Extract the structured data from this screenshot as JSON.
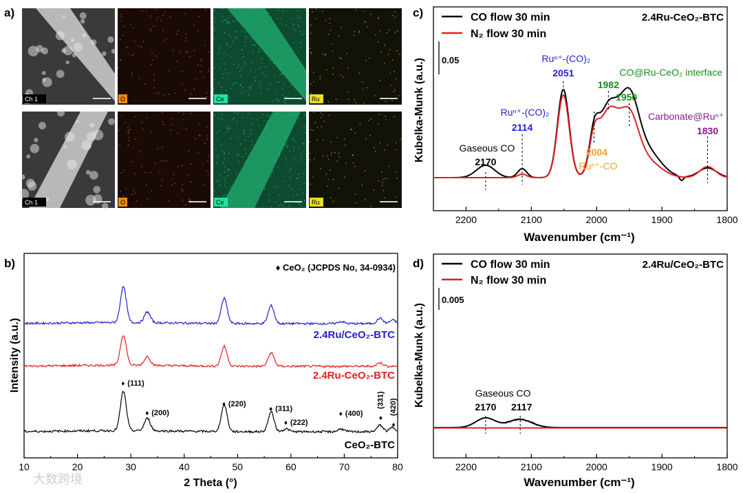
{
  "colors": {
    "black": "#000000",
    "red": "#e02020",
    "blue": "#1f1fd0",
    "green": "#1a8c1a",
    "orange": "#f0a020",
    "purple": "#8a1a8a",
    "cyan": "#20e0a0",
    "yellow": "#e8e020"
  },
  "panel_a": {
    "label": "a)",
    "rows": [
      {
        "tiles": [
          {
            "tag": "Ch 1",
            "kind": "sem"
          },
          {
            "tag": "O",
            "kind": "o"
          },
          {
            "tag": "Ce",
            "kind": "ce"
          },
          {
            "tag": "Ru",
            "kind": "ru"
          }
        ]
      },
      {
        "tiles": [
          {
            "tag": "Ch 1",
            "kind": "sem"
          },
          {
            "tag": "O",
            "kind": "o"
          },
          {
            "tag": "Ce",
            "kind": "ce"
          },
          {
            "tag": "Ru",
            "kind": "ru"
          }
        ]
      }
    ]
  },
  "watermark": "大数跨境",
  "chart_data": [
    {
      "id": "b",
      "panel_label": "b)",
      "type": "line",
      "xlabel": "2 Theta (°)",
      "ylabel": "Intensity (a.u.)",
      "xlim": [
        10,
        80
      ],
      "xticks": [
        10,
        20,
        30,
        40,
        50,
        60,
        70,
        80
      ],
      "legend": "♦ CeO₂ (JCPDS No, 34-0934)",
      "series": [
        {
          "name": "2.4Ru/CeO₂-BTC",
          "color": "#1f1fd0",
          "offset": 2.6,
          "peaks": [
            [
              28.6,
              1.0
            ],
            [
              33.1,
              0.3
            ],
            [
              47.5,
              0.7
            ],
            [
              56.3,
              0.5
            ],
            [
              69.4,
              0.06
            ],
            [
              76.7,
              0.15
            ],
            [
              79.1,
              0.1
            ]
          ]
        },
        {
          "name": "2.4Ru-CeO₂-BTC",
          "color": "#e02020",
          "offset": 1.3,
          "peaks": [
            [
              28.6,
              0.85
            ],
            [
              33.1,
              0.25
            ],
            [
              47.5,
              0.55
            ],
            [
              56.3,
              0.38
            ],
            [
              76.7,
              0.1
            ]
          ]
        },
        {
          "name": "CeO₂-BTC",
          "color": "#000000",
          "offset": 0,
          "peaks": [
            [
              28.6,
              1.1
            ],
            [
              33.1,
              0.35
            ],
            [
              47.5,
              0.75
            ],
            [
              56.3,
              0.55
            ],
            [
              59.1,
              0.08
            ],
            [
              69.4,
              0.08
            ],
            [
              76.7,
              0.18
            ],
            [
              79.1,
              0.12
            ]
          ]
        }
      ],
      "annotations": [
        {
          "text": "(111)",
          "x": 28.6
        },
        {
          "text": "(200)",
          "x": 33.1
        },
        {
          "text": "(220)",
          "x": 47.5
        },
        {
          "text": "(311)",
          "x": 56.3
        },
        {
          "text": "(222)",
          "x": 59.1
        },
        {
          "text": "(400)",
          "x": 69.4
        },
        {
          "text": "(331)",
          "x": 76.7
        },
        {
          "text": "(420)",
          "x": 79.1
        }
      ]
    },
    {
      "id": "c",
      "panel_label": "c)",
      "type": "line",
      "title": "2.4Ru-CeO₂-BTC",
      "xlabel": "Wavenumber (cm⁻¹)",
      "ylabel": "Kubelka-Munk (a.u.)",
      "xlim": [
        2250,
        1800
      ],
      "xticks": [
        2200,
        2100,
        2000,
        1900,
        1800
      ],
      "scale_bar": "0.05",
      "series": [
        {
          "name": "CO flow 30 min",
          "color": "#000000"
        },
        {
          "name": "N₂ flow 30 min",
          "color": "#e02020"
        }
      ],
      "peaks": [
        {
          "label": "Gaseous CO",
          "value": "2170",
          "x": 2170,
          "color": "#000000"
        },
        {
          "label": "Ruⁿ⁺-(CO)₂",
          "value": "2114",
          "x": 2114,
          "color": "#1f1fd0"
        },
        {
          "label": "Ruⁿ⁺-(CO)₂",
          "value": "2051",
          "x": 2051,
          "color": "#1f1fd0"
        },
        {
          "label": "Ruⁿ⁺-CO",
          "value": "2004",
          "x": 2004,
          "color": "#f0a020"
        },
        {
          "label": "CO@Ru-CeO₂ interface",
          "value": "1982",
          "x": 1982,
          "color": "#1a8c1a"
        },
        {
          "label": "",
          "value": "1950",
          "x": 1950,
          "color": "#1a8c1a"
        },
        {
          "label": "Carbonate@Ruⁿ⁺",
          "value": "1830",
          "x": 1830,
          "color": "#8a1a8a"
        }
      ]
    },
    {
      "id": "d",
      "panel_label": "d)",
      "type": "line",
      "title": "2.4Ru/CeO₂-BTC",
      "xlabel": "Wavenumber (cm⁻¹)",
      "ylabel": "Kubelka-Munk (a.u.)",
      "xlim": [
        2250,
        1800
      ],
      "xticks": [
        2200,
        2100,
        2000,
        1900,
        1800
      ],
      "scale_bar": "0.005",
      "series": [
        {
          "name": "CO flow 30 min",
          "color": "#000000"
        },
        {
          "name": "N₂ flow 30 min",
          "color": "#e02020"
        }
      ],
      "peaks": [
        {
          "label": "Gaseous CO",
          "value": "2170",
          "x": 2170,
          "color": "#000000"
        },
        {
          "label": "",
          "value": "2117",
          "x": 2117,
          "color": "#000000"
        }
      ]
    }
  ]
}
